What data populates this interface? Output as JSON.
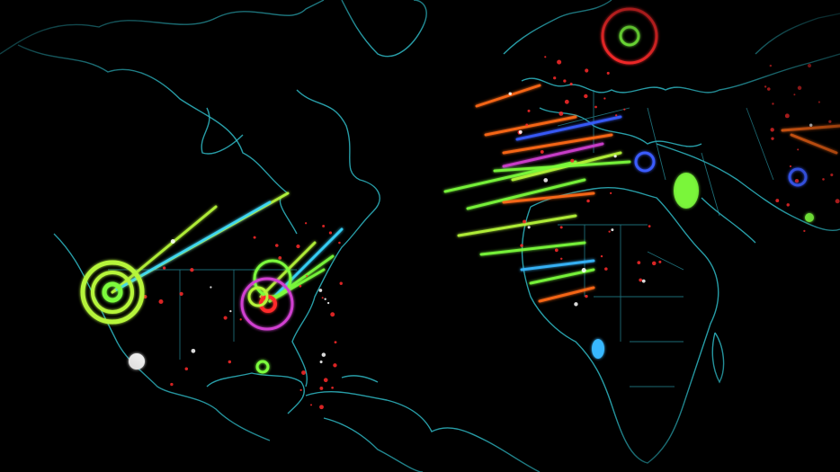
{
  "map": {
    "background_color": "#000000",
    "coastline_color": "#2fb8c4",
    "attack_colors": {
      "green": "#7CFC3C",
      "lime": "#b6f53a",
      "orange": "#ff6a1a",
      "cyan": "#38d6ff",
      "magenta": "#d040d0",
      "red": "#ff2a2a",
      "blue": "#3a5cff",
      "sky": "#38b8ff"
    }
  }
}
